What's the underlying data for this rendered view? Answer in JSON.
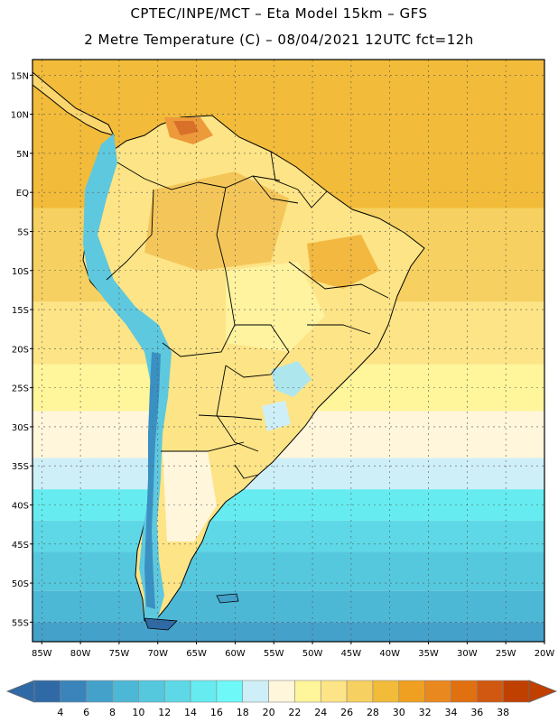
{
  "header": {
    "title_line1": "CPTEC/INPE/MCT –  Eta Model 15km – GFS",
    "title_line2": "2 Metre Temperature (C) – 08/04/2021 12UTC fct=12h"
  },
  "map": {
    "lat_labels": [
      "15N",
      "10N",
      "5N",
      "EQ",
      "5S",
      "10S",
      "15S",
      "20S",
      "25S",
      "30S",
      "35S",
      "40S",
      "45S",
      "50S",
      "55S"
    ],
    "lon_labels": [
      "85W",
      "80W",
      "75W",
      "70W",
      "65W",
      "60W",
      "55W",
      "50W",
      "45W",
      "40W",
      "35W",
      "30W",
      "25W",
      "20W"
    ],
    "lat_range": [
      15,
      -55
    ],
    "lon_range": [
      -85,
      -20
    ],
    "ocean_bands": [
      {
        "lat_from": 17,
        "lat_to": -2,
        "temp_class": "28"
      },
      {
        "lat_from": -2,
        "lat_to": -14,
        "temp_class": "26"
      },
      {
        "lat_from": -14,
        "lat_to": -22,
        "temp_class": "24"
      },
      {
        "lat_from": -22,
        "lat_to": -28,
        "temp_class": "22"
      },
      {
        "lat_from": -28,
        "lat_to": -34,
        "temp_class": "20"
      },
      {
        "lat_from": -34,
        "lat_to": -38,
        "temp_class": "18"
      },
      {
        "lat_from": -38,
        "lat_to": -42,
        "temp_class": "14"
      },
      {
        "lat_from": -42,
        "lat_to": -46,
        "temp_class": "12"
      },
      {
        "lat_from": -46,
        "lat_to": -51,
        "temp_class": "10"
      },
      {
        "lat_from": -51,
        "lat_to": -55,
        "temp_class": "8"
      },
      {
        "lat_from": -55,
        "lat_to": -58,
        "temp_class": "6"
      }
    ]
  },
  "colorbar": {
    "labels": [
      "4",
      "6",
      "8",
      "10",
      "12",
      "14",
      "16",
      "18",
      "20",
      "22",
      "24",
      "26",
      "28",
      "30",
      "32",
      "34",
      "36",
      "38"
    ],
    "colors": [
      "#2f6aa6",
      "#3a84bb",
      "#44a1ca",
      "#4db8d6",
      "#55c8de",
      "#5ed8e6",
      "#66ecf0",
      "#6ff8f8",
      "#cfeff8",
      "#fff6dc",
      "#fff59a",
      "#fde486",
      "#f6d060",
      "#f2bb3a",
      "#f0a020",
      "#ea8820",
      "#e07010",
      "#d05810",
      "#c04000"
    ],
    "low_color": "#2f6aa6",
    "high_color": "#c04000"
  },
  "colors": {
    "map_frame": "#000000",
    "grid": "#555555",
    "coast": "#000000",
    "land_default": "#fde486"
  }
}
